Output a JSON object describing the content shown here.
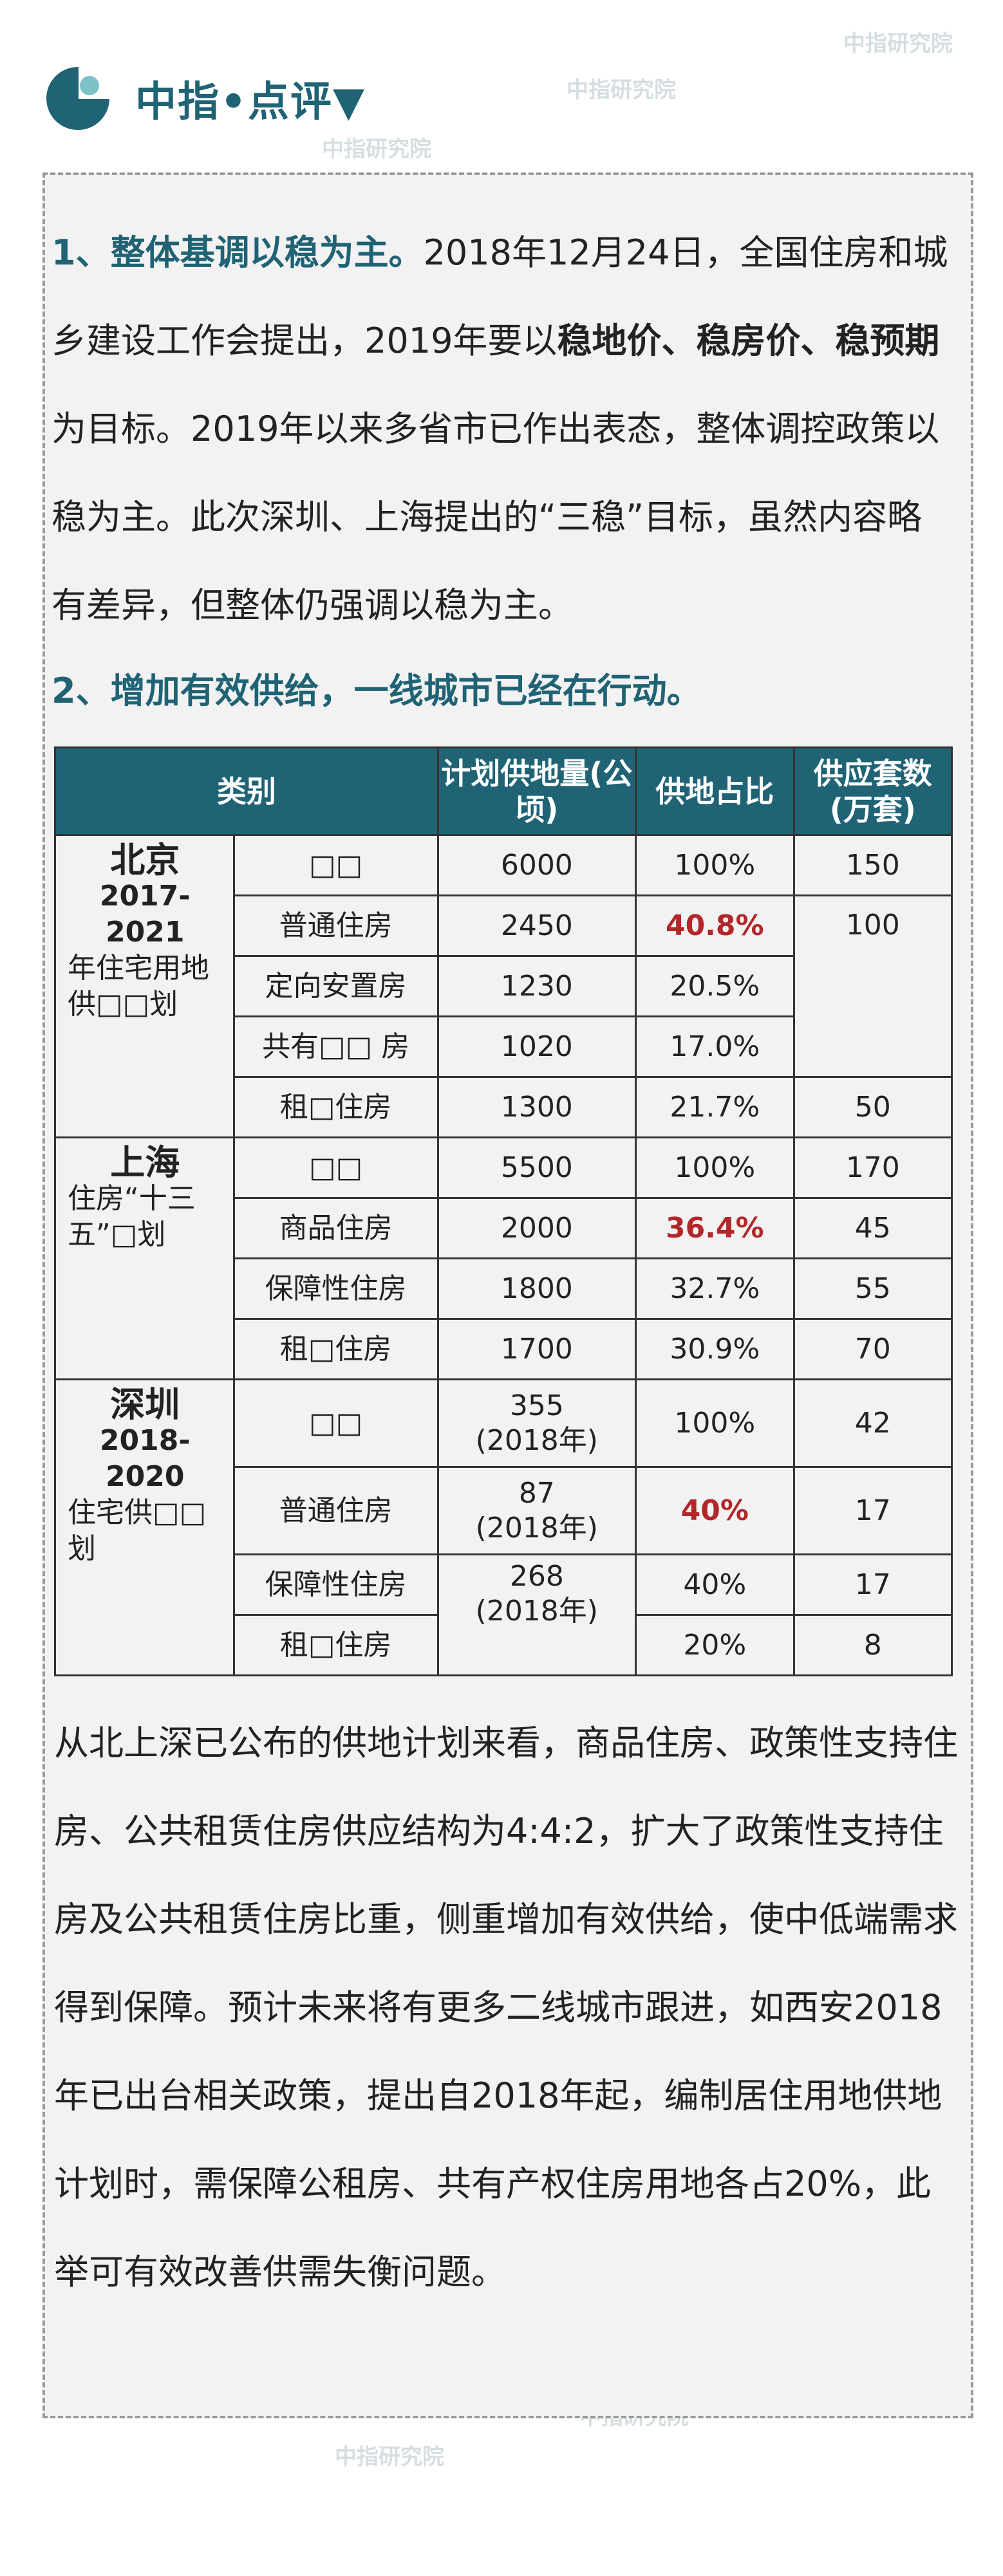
{
  "header": {
    "title": "中指•点评▼"
  },
  "watermark": "中指研究院",
  "section1": {
    "heading": "1、整体基调以稳为主。",
    "t1": "2018年12月24日，全国住房和城乡建设工作会提出，2019年要以",
    "bold": "稳地价、稳房价、稳预期",
    "t2": "为目标。2019年以来多省市已作出表态，整体调控政策以稳为主。此次深圳、上海提出的“三稳”目标，虽然内容略有差异，但整体仍强调以稳为主。"
  },
  "section2": {
    "heading": "2、增加有效供给，一线城市已经在行动。"
  },
  "table": {
    "headers": [
      "类别",
      "计划供地量(公顷)",
      "供地占比",
      "供应套数(万套)"
    ],
    "beijing": {
      "name": "北京",
      "period": "2017-2021",
      "desc": "年住宅用地供□□划",
      "rows": [
        {
          "type": "□□",
          "area": "6000",
          "share": "100%",
          "units": "150"
        },
        {
          "type": "普通住房",
          "area": "2450",
          "share": "40.8%",
          "units": "100"
        },
        {
          "type": "定向安置房",
          "area": "1230",
          "share": "20.5%"
        },
        {
          "type": "共有□□ 房",
          "area": "1020",
          "share": "17.0%"
        },
        {
          "type": "租□住房",
          "area": "1300",
          "share": "21.7%",
          "units": "50"
        }
      ]
    },
    "shanghai": {
      "name": "上海",
      "desc": "住房“十三五”□划",
      "rows": [
        {
          "type": "□□",
          "area": "5500",
          "share": "100%",
          "units": "170"
        },
        {
          "type": "商品住房",
          "area": "2000",
          "share": "36.4%",
          "units": "45"
        },
        {
          "type": "保障性住房",
          "area": "1800",
          "share": "32.7%",
          "units": "55"
        },
        {
          "type": "租□住房",
          "area": "1700",
          "share": "30.9%",
          "units": "70"
        }
      ]
    },
    "shenzhen": {
      "name": "深圳",
      "period": "2018-2020",
      "desc": "住宅供□□划",
      "rows": [
        {
          "type": "□□",
          "area": "355",
          "year": "(2018年)",
          "share": "100%",
          "units": "42"
        },
        {
          "type": "普通住房",
          "area": "87",
          "year": "(2018年)",
          "share": "40%",
          "units": "17"
        },
        {
          "type": "保障性住房",
          "area": "268",
          "year": "(2018年)",
          "share": "40%",
          "units": "17"
        },
        {
          "type": "租□住房",
          "share": "20%",
          "units": "8"
        }
      ]
    }
  },
  "section3": {
    "text": "从北上深已公布的供地计划来看，商品住房、政策性支持住房、公共租赁住房供应结构为4:4:2，扩大了政策性支持住房及公共租赁住房比重，侧重增加有效供给，使中低端需求得到保障。预计未来将有更多二线城市跟进，如西安2018年已出台相关政策，提出自2018年起，编制居住用地供地计划时，需保障公租房、共有产权住房用地各占20%，此举可有效改善供需失衡问题。"
  }
}
